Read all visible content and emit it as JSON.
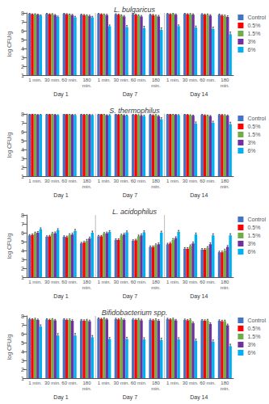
{
  "chart_data": [
    {
      "type": "bar",
      "title": "L. bulgaricus",
      "ylabel": "log CFU/g",
      "categories": [
        "1 min.",
        "30 min.",
        "60 min.",
        "180\nmin.",
        "1 min.",
        "30 min.",
        "60 min.",
        "180\nmin.",
        "1 min.",
        "30 min.",
        "60 min.",
        "180\nmin."
      ],
      "annotations": [
        "Day 1",
        "Day 7",
        "Day 14"
      ],
      "ylim": [
        1.0,
        8.0
      ],
      "yticks": [
        1,
        2,
        3,
        4,
        5,
        6,
        7,
        8
      ],
      "grid": false,
      "legend": "right",
      "series": [
        {
          "name": "Control",
          "color": "#4472C4",
          "values": [
            7.9,
            7.9,
            7.9,
            7.8,
            7.9,
            7.85,
            7.85,
            7.8,
            7.9,
            7.9,
            7.85,
            7.8
          ],
          "errors": [
            0.05,
            0.05,
            0.06,
            0.07,
            0.05,
            0.06,
            0.06,
            0.08,
            0.05,
            0.06,
            0.07,
            0.08
          ]
        },
        {
          "name": "0.5%",
          "color": "#FF0000",
          "values": [
            7.85,
            7.85,
            7.85,
            7.75,
            7.85,
            7.8,
            7.8,
            7.75,
            7.85,
            7.85,
            7.8,
            7.7
          ],
          "errors": [
            0.05,
            0.06,
            0.07,
            0.08,
            0.06,
            0.07,
            0.08,
            0.09,
            0.06,
            0.07,
            0.08,
            0.1
          ]
        },
        {
          "name": "1.5%",
          "color": "#70AD47",
          "values": [
            7.85,
            7.85,
            7.8,
            7.7,
            7.8,
            7.7,
            7.7,
            7.65,
            7.9,
            7.85,
            7.8,
            7.65
          ],
          "errors": [
            0.06,
            0.07,
            0.08,
            0.09,
            0.08,
            0.09,
            0.1,
            0.11,
            0.07,
            0.08,
            0.09,
            0.11
          ]
        },
        {
          "name": "3%",
          "color": "#7030A0",
          "values": [
            7.8,
            7.75,
            7.75,
            7.65,
            7.75,
            7.6,
            7.6,
            7.6,
            7.8,
            7.8,
            7.7,
            7.55
          ],
          "errors": [
            0.07,
            0.08,
            0.09,
            0.1,
            0.1,
            0.11,
            0.12,
            0.13,
            0.09,
            0.1,
            0.11,
            0.13
          ]
        },
        {
          "name": "6%",
          "color": "#00B0F0",
          "values": [
            7.7,
            7.55,
            7.5,
            7.5,
            6.5,
            6.4,
            6.3,
            6.1,
            6.5,
            6.35,
            6.2,
            5.6
          ],
          "errors": [
            0.08,
            0.1,
            0.12,
            0.12,
            0.15,
            0.18,
            0.2,
            0.22,
            0.15,
            0.18,
            0.2,
            0.25
          ]
        }
      ]
    },
    {
      "type": "bar",
      "title": "S. thermophilus",
      "ylabel": "log CFU/g",
      "categories": [
        "1 min.",
        "30 min.",
        "60 min.",
        "180\nmin.",
        "1 min.",
        "30 min.",
        "60 min.",
        "180\nmin.",
        "1 min.",
        "30 min.",
        "60 min.",
        "180\nmin."
      ],
      "annotations": [
        "Day 1",
        "Day 7",
        "Day 14"
      ],
      "ylim": [
        1.0,
        8.0
      ],
      "yticks": [
        1,
        2,
        3,
        4,
        5,
        6,
        7,
        8
      ],
      "grid": false,
      "legend": "right",
      "series": [
        {
          "name": "Control",
          "color": "#4472C4",
          "values": [
            7.95,
            7.95,
            7.95,
            7.95,
            7.95,
            7.95,
            7.9,
            7.9,
            7.95,
            7.95,
            7.9,
            7.9
          ],
          "errors": [
            0.03,
            0.03,
            0.04,
            0.04,
            0.04,
            0.04,
            0.05,
            0.05,
            0.03,
            0.04,
            0.05,
            0.05
          ]
        },
        {
          "name": "0.5%",
          "color": "#FF0000",
          "values": [
            7.95,
            7.95,
            7.95,
            7.9,
            7.95,
            7.9,
            7.9,
            7.85,
            7.95,
            7.9,
            7.85,
            7.88
          ],
          "errors": [
            0.03,
            0.04,
            0.04,
            0.05,
            0.04,
            0.05,
            0.06,
            0.06,
            0.04,
            0.05,
            0.06,
            0.06
          ]
        },
        {
          "name": "1.5%",
          "color": "#70AD47",
          "values": [
            7.95,
            7.95,
            7.9,
            7.9,
            7.9,
            7.9,
            7.85,
            7.85,
            7.9,
            7.85,
            7.8,
            7.85
          ],
          "errors": [
            0.04,
            0.04,
            0.05,
            0.05,
            0.05,
            0.06,
            0.07,
            0.08,
            0.05,
            0.06,
            0.07,
            0.07
          ]
        },
        {
          "name": "3%",
          "color": "#7030A0",
          "values": [
            7.9,
            7.9,
            7.9,
            7.9,
            7.85,
            7.85,
            7.8,
            7.75,
            7.9,
            7.8,
            7.75,
            7.8
          ],
          "errors": [
            0.04,
            0.05,
            0.05,
            0.06,
            0.06,
            0.07,
            0.08,
            0.1,
            0.05,
            0.07,
            0.08,
            0.08
          ]
        },
        {
          "name": "6%",
          "color": "#00B0F0",
          "values": [
            7.9,
            7.85,
            7.85,
            7.85,
            7.85,
            7.8,
            7.75,
            7.4,
            7.85,
            6.9,
            7.0,
            6.85
          ],
          "errors": [
            0.05,
            0.06,
            0.07,
            0.07,
            0.07,
            0.08,
            0.1,
            0.18,
            0.07,
            0.2,
            0.18,
            0.22
          ]
        }
      ]
    },
    {
      "type": "bar",
      "title": "L. acidophilus",
      "ylabel": "log CFU/g",
      "categories": [
        "1 min.",
        "30 min.",
        "60 min.",
        "180\nmin.",
        "1 min.",
        "30 min.",
        "60 min.",
        "180\nmin.",
        "1 min.",
        "30 min.",
        "60 min.",
        "180\nmin."
      ],
      "annotations": [
        "Day 1",
        "Day 7",
        "Day 14"
      ],
      "ylim": [
        1.0,
        8.0
      ],
      "yticks": [
        1,
        2,
        3,
        4,
        5,
        6,
        7,
        8
      ],
      "grid": false,
      "legend": "right",
      "series": [
        {
          "name": "Control",
          "color": "#4472C4",
          "values": [
            5.7,
            5.55,
            5.55,
            4.8,
            5.6,
            5.2,
            5.1,
            4.4,
            4.7,
            4.2,
            4.1,
            3.8
          ],
          "errors": [
            0.1,
            0.1,
            0.11,
            0.12,
            0.1,
            0.11,
            0.11,
            0.12,
            0.12,
            0.12,
            0.12,
            0.12
          ]
        },
        {
          "name": "0.5%",
          "color": "#FF0000",
          "values": [
            5.75,
            5.6,
            5.5,
            4.9,
            5.6,
            5.2,
            5.15,
            4.4,
            4.8,
            4.2,
            4.1,
            3.8
          ],
          "errors": [
            0.1,
            0.11,
            0.12,
            0.13,
            0.1,
            0.11,
            0.12,
            0.12,
            0.12,
            0.12,
            0.13,
            0.13
          ]
        },
        {
          "name": "1.5%",
          "color": "#70AD47",
          "values": [
            5.95,
            5.9,
            5.75,
            5.1,
            5.9,
            5.7,
            5.6,
            4.6,
            5.2,
            4.5,
            4.3,
            4.0
          ],
          "errors": [
            0.12,
            0.13,
            0.14,
            0.15,
            0.12,
            0.13,
            0.14,
            0.14,
            0.14,
            0.14,
            0.14,
            0.15
          ]
        },
        {
          "name": "3%",
          "color": "#7030A0",
          "values": [
            6.0,
            5.95,
            5.8,
            5.35,
            5.95,
            5.8,
            5.7,
            4.7,
            5.4,
            4.8,
            4.7,
            4.4
          ],
          "errors": [
            0.13,
            0.14,
            0.15,
            0.16,
            0.13,
            0.14,
            0.15,
            0.15,
            0.15,
            0.15,
            0.16,
            0.16
          ]
        },
        {
          "name": "6%",
          "color": "#00B0F0",
          "values": [
            6.4,
            6.3,
            6.2,
            6.0,
            6.1,
            6.05,
            6.05,
            6.0,
            6.1,
            5.8,
            5.7,
            5.7
          ],
          "errors": [
            0.15,
            0.16,
            0.17,
            0.18,
            0.14,
            0.15,
            0.16,
            0.17,
            0.16,
            0.17,
            0.18,
            0.19
          ]
        }
      ]
    },
    {
      "type": "bar",
      "title": "Bifidobacterium spp.",
      "ylabel": "log CFU/g",
      "categories": [
        "1 min.",
        "30 min.",
        "60 min.",
        "180\nmin.",
        "1 min.",
        "30 min.",
        "60 min.",
        "180\nmin.",
        "1 min.",
        "30 min.",
        "60 min.",
        "180\nmin."
      ],
      "annotations": [
        "Day 1",
        "Day 7",
        "Day 14"
      ],
      "ylim": [
        1.0,
        8.0
      ],
      "yticks": [
        1,
        2,
        3,
        4,
        5,
        6,
        7,
        8
      ],
      "grid": false,
      "legend": "right",
      "series": [
        {
          "name": "Control",
          "color": "#4472C4",
          "values": [
            7.65,
            7.6,
            7.6,
            7.5,
            7.7,
            7.65,
            7.6,
            7.55,
            7.65,
            7.55,
            7.5,
            7.45
          ],
          "errors": [
            0.08,
            0.08,
            0.09,
            0.1,
            0.08,
            0.09,
            0.1,
            0.1,
            0.09,
            0.1,
            0.1,
            0.11
          ]
        },
        {
          "name": "0.5%",
          "color": "#FF0000",
          "values": [
            7.6,
            7.55,
            7.55,
            7.45,
            7.65,
            7.6,
            7.55,
            7.5,
            7.6,
            7.5,
            7.45,
            7.4
          ],
          "errors": [
            0.08,
            0.09,
            0.1,
            0.11,
            0.09,
            0.1,
            0.1,
            0.11,
            0.09,
            0.1,
            0.11,
            0.12
          ]
        },
        {
          "name": "1.5%",
          "color": "#70AD47",
          "values": [
            7.65,
            7.6,
            7.55,
            7.5,
            7.7,
            7.65,
            7.6,
            7.55,
            7.65,
            7.55,
            7.5,
            7.4
          ],
          "errors": [
            0.09,
            0.1,
            0.11,
            0.12,
            0.1,
            0.11,
            0.12,
            0.12,
            0.1,
            0.12,
            0.12,
            0.13
          ]
        },
        {
          "name": "3%",
          "color": "#7030A0",
          "values": [
            7.55,
            7.5,
            7.45,
            7.4,
            7.6,
            7.55,
            7.5,
            7.45,
            7.5,
            7.2,
            7.1,
            6.95
          ],
          "errors": [
            0.1,
            0.11,
            0.12,
            0.13,
            0.1,
            0.11,
            0.13,
            0.13,
            0.11,
            0.13,
            0.13,
            0.14
          ]
        },
        {
          "name": "6%",
          "color": "#00B0F0",
          "values": [
            6.8,
            5.8,
            5.8,
            5.6,
            5.4,
            5.4,
            5.35,
            5.3,
            5.35,
            5.2,
            5.1,
            4.6
          ],
          "errors": [
            0.2,
            0.22,
            0.22,
            0.2,
            0.18,
            0.2,
            0.2,
            0.2,
            0.2,
            0.2,
            0.2,
            0.22
          ]
        }
      ]
    }
  ]
}
